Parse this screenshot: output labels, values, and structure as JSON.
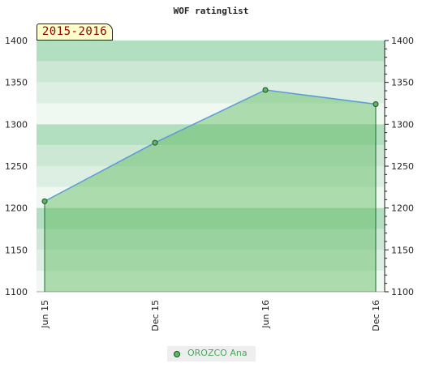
{
  "chart_data": {
    "type": "area",
    "title": "WOF ratinglist",
    "period": "2015-2016",
    "x_categories": [
      "Jun 15",
      "Dec 15",
      "Jun 16",
      "Dec 16"
    ],
    "series": [
      {
        "name": "OROZCO Ana",
        "values": [
          1208,
          1278,
          1341,
          1324
        ],
        "color": "#5cb85c"
      }
    ],
    "y_ticks": [
      1100,
      1150,
      1200,
      1250,
      1300,
      1350,
      1400
    ],
    "ylim": [
      1100,
      1400
    ],
    "y_axis_both_sides": true,
    "legend_position": "bottom",
    "colors": {
      "line": "#5b9bd5",
      "area": "#5cb85c",
      "marker_fill": "#5cb85c",
      "marker_stroke": "#1f4d2c"
    }
  }
}
